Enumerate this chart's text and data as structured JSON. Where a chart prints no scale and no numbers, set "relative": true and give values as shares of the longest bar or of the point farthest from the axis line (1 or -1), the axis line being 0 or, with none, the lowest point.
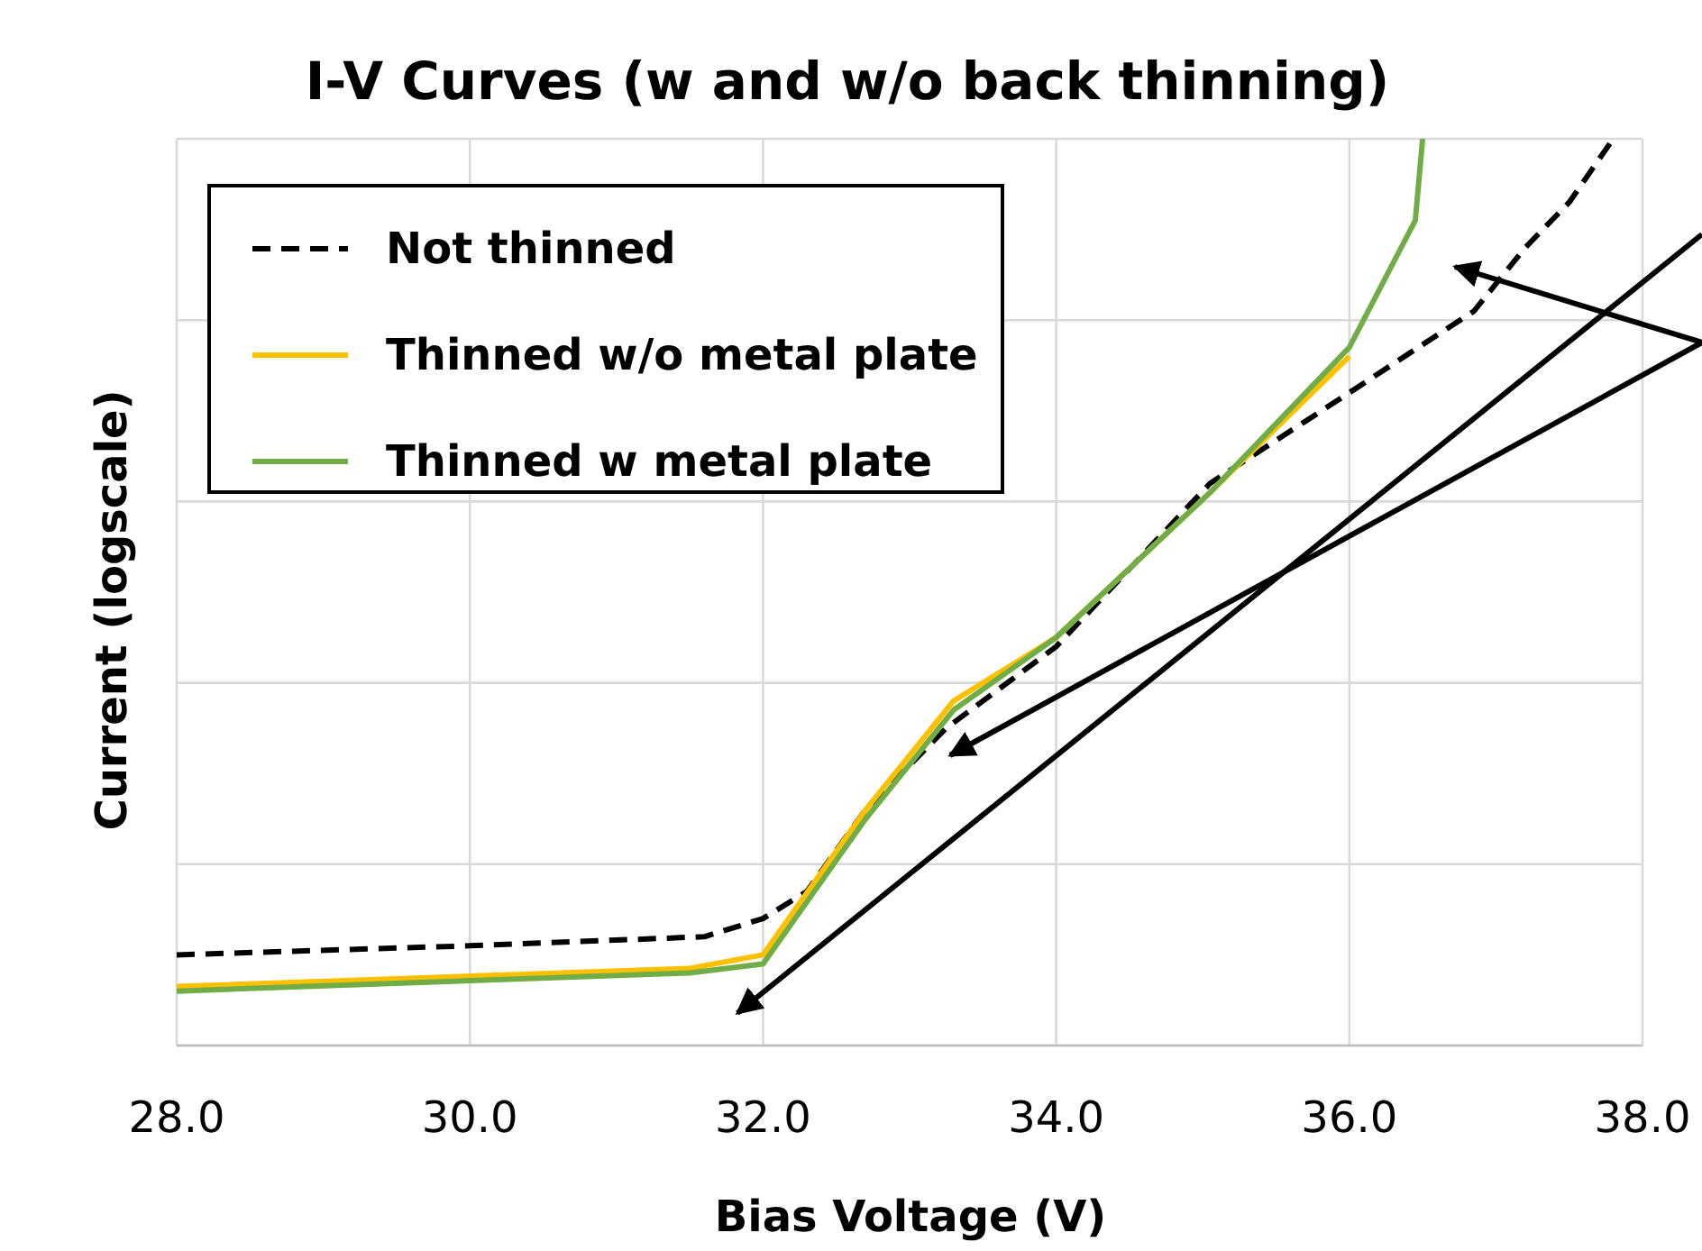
{
  "chart_data": {
    "type": "line",
    "title": "I-V Curves (w and w/o back thinning)",
    "xlabel": "Bias Voltage (V)",
    "ylabel": "Current (logscale)",
    "relative": true,
    "xlim": [
      28,
      38
    ],
    "xticks": [
      {
        "value": 28,
        "label": "28.0"
      },
      {
        "value": 30,
        "label": "30.0"
      },
      {
        "value": 32,
        "label": "32.0"
      },
      {
        "value": 34,
        "label": "34.0"
      },
      {
        "value": 36,
        "label": "36.0"
      },
      {
        "value": 38,
        "label": "38.0"
      }
    ],
    "grid": true,
    "legend": "top left",
    "series": [
      {
        "name": "Not thinned",
        "color": "#000000",
        "line_style": "dashed",
        "x": [
          28,
          30,
          31.6,
          32,
          32.3,
          32.7,
          33.25,
          34,
          35.05,
          36,
          36.85,
          37.2,
          37.5,
          37.8
        ],
        "values": [
          0.1,
          0.11,
          0.12,
          0.14,
          0.17,
          0.26,
          0.35,
          0.44,
          0.62,
          0.72,
          0.81,
          0.88,
          0.93,
          1.0
        ]
      },
      {
        "name": "Thinned w/o metal plate",
        "color": "#ffc000",
        "line_style": "solid",
        "x": [
          28,
          31.5,
          32,
          32.7,
          33.3,
          34,
          35.05,
          36
        ],
        "values": [
          0.065,
          0.085,
          0.1,
          0.26,
          0.38,
          0.45,
          0.61,
          0.76
        ]
      },
      {
        "name": "Thinned w metal plate",
        "color": "#70ad47",
        "line_style": "solid",
        "x": [
          28,
          31.5,
          32,
          32.7,
          33.3,
          34,
          35.05,
          36,
          36.45,
          36.5
        ],
        "values": [
          0.06,
          0.08,
          0.09,
          0.25,
          0.37,
          0.45,
          0.61,
          0.77,
          0.91,
          1.0
        ]
      }
    ]
  }
}
